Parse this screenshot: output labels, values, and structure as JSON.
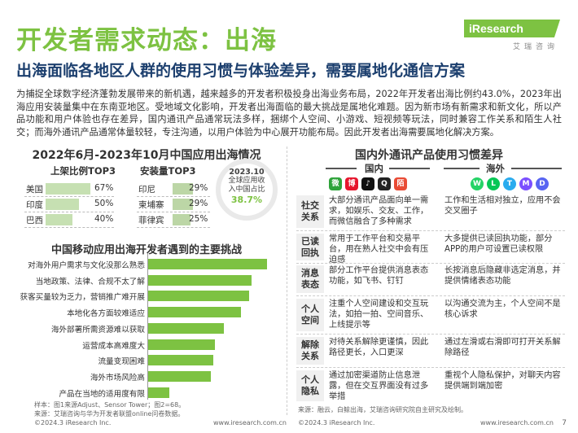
{
  "header": {
    "title": "开发者需求动态：出海",
    "subtitle": "出海面临各地区人群的使用习惯与体验差异，需要属地化通信方案",
    "logo_text": "iResearch",
    "logo_sub": "艾瑞咨询"
  },
  "intro": "为捕捉全球数字经济蓬勃发展带来的新机遇，越来越多的开发者积极投身出海业务布局，2022年开发者出海比例约43.0%，2023年出海应用安装量集中在东南亚地区。受地域文化影响，开发者出海面临的最大挑战是属地化难题。因为新市场有新需求和新文化，所以产品功能和用户体验也存在差异，国内通讯产品通常玩法多样，捆绑个人空间、小游戏、短视频等玩法，同时兼容工作关系和陌生人社交；而海外通讯产品通常体量较轻，专注沟通，以用户体验为中心展开功能布局。因此开发者出海需要属地化解决方案。",
  "left_panel": {
    "title": "2022年6月-2023年10月中国应用出海情况",
    "col1_head": "上架比例TOP3",
    "col2_head": "安装量TOP3",
    "listing_top3": [
      {
        "name": "美国",
        "pct": "67%",
        "value": 67
      },
      {
        "name": "印度",
        "pct": "50%",
        "value": 50
      },
      {
        "name": "巴西",
        "pct": "40%",
        "value": 40
      }
    ],
    "install_top3": [
      {
        "name": "印尼",
        "pct": "29%",
        "value": 29
      },
      {
        "name": "柬埔寨",
        "pct": "29%",
        "value": 29
      },
      {
        "name": "菲律宾",
        "pct": "25%",
        "value": 25
      }
    ],
    "circle": {
      "date": "2023.10",
      "line1": "全球应用收",
      "line2": "入中国占比",
      "value": "38.7%"
    }
  },
  "chart_data": {
    "type": "bar",
    "title": "中国移动应用出海开发者遇到的主要挑战",
    "categories": [
      "对海外用户需求与文化没那么熟悉",
      "当地政策、法律、合规不太了解",
      "获客买量较为乏力，营销推广难开展",
      "本地化各方面较难适应",
      "海外部署所需资源难以获取",
      "运营成本高难度大",
      "流量变现困难",
      "海外市场风险高",
      "产品在当地的适用度有限"
    ],
    "values": [
      100,
      87,
      85,
      78,
      64,
      56,
      55,
      53,
      18
    ],
    "xlabel": "",
    "ylabel": ""
  },
  "left_note": {
    "line1": "样本：图1来源Adjust、Sensor Tower；图2=68。",
    "line2": "来源：艾瑞咨询与华为开发者联盟online问卷数据。"
  },
  "right_panel": {
    "title": "国内外通讯产品使用习惯差异",
    "domestic": "国内",
    "overseas": "海外",
    "domestic_icons": [
      {
        "name": "wechat-icon",
        "glyph": "微",
        "color": "#2ea33a"
      },
      {
        "name": "weibo-icon",
        "glyph": "博",
        "color": "#e6162d"
      },
      {
        "name": "tiktok-icon",
        "glyph": "♪",
        "color": "#111111"
      },
      {
        "name": "qq-icon",
        "glyph": "Q",
        "color": "#222222"
      },
      {
        "name": "momo-icon",
        "glyph": "陌",
        "color": "#e94b35"
      }
    ],
    "overseas_icons": [
      {
        "name": "whatsapp-icon",
        "glyph": "W",
        "color": "#25d366"
      },
      {
        "name": "line-icon",
        "glyph": "L",
        "color": "#06c755"
      },
      {
        "name": "telegram-icon",
        "glyph": "T",
        "color": "#2aabee"
      },
      {
        "name": "messenger-icon",
        "glyph": "M",
        "color": "#7b4fff"
      },
      {
        "name": "discord-icon",
        "glyph": "D",
        "color": "#5865f2"
      }
    ],
    "rows": [
      {
        "label1": "社交",
        "label2": "关系",
        "domestic": "大部分通讯产品面向单一需求，如娱乐、交友、工作，而微信融合了多种需求",
        "overseas": "工作和生活相对独立，应用不会交叉圈子"
      },
      {
        "label1": "已读",
        "label2": "回执",
        "domestic": "常用于工作平台和交易平台，用在熟人社交中会有压迫感",
        "overseas": "大多提供已读回执功能，部分APP的用户可设置已读权限"
      },
      {
        "label1": "消息",
        "label2": "表态",
        "domestic": "部分工作平台提供消息表态功能，如飞书、钉钉",
        "overseas": "长按消息后隐藏非选定消息，并提供情绪表态功能"
      },
      {
        "label1": "个人",
        "label2": "空间",
        "domestic": "注重个人空间建设和交互玩法，如拍一拍、空间音乐、上线提示等",
        "overseas": "以沟通交流为主，个人空间不是核心诉求"
      },
      {
        "label1": "解除",
        "label2": "关系",
        "domestic": "对待关系解除更谨慎，因此路径更长，入口更深",
        "overseas": "通过左滑或右滑即可打开关系解除路径"
      },
      {
        "label1": "个人",
        "label2": "隐私",
        "domestic": "通过加密渠道防止信息泄露，但在交互界面没有过多举措",
        "overseas": "重视个人隐私保护，对聊天内容提供端到端加密"
      }
    ],
    "source": "来源：融云，白鲸出海，艾瑞咨询研究院自主研究及绘制。"
  },
  "footer": {
    "left_copy": "©2024.3 iResearch Inc.",
    "left_url": "www.iresearch.com.cn",
    "right_copy": "©2024.3 iResearch Inc.",
    "right_url": "www.iresearch.com.cn",
    "page": "7"
  },
  "colors": {
    "accent": "#7dc242",
    "navy": "#1c3f6e",
    "bar_light": "#c6e0b2"
  }
}
